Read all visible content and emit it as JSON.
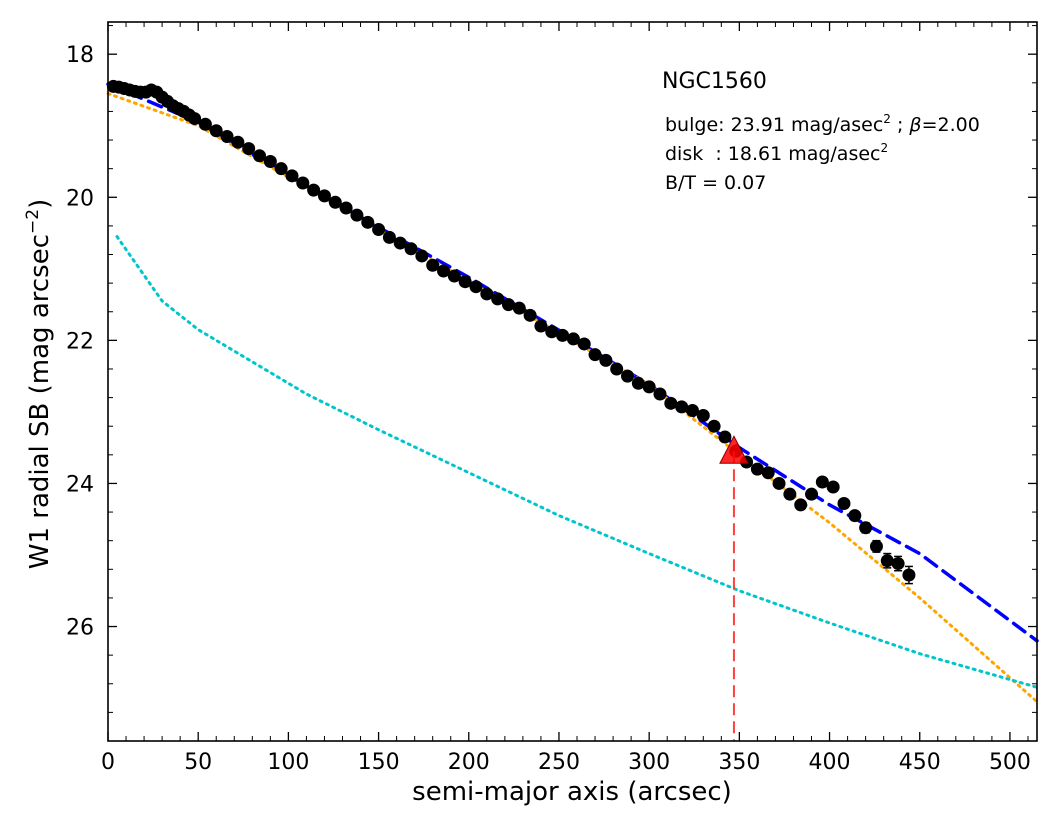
{
  "chart_data": {
    "type": "scatter",
    "title": "",
    "xlabel": "semi-major axis (arcsec)",
    "ylabel": "W1 radial SB (mag arcsec",
    "ylabel_sup": "−2",
    "ylabel_close": ")",
    "xlim": [
      0,
      515
    ],
    "ylim": [
      27.6,
      17.55
    ],
    "y_inverted": true,
    "xticks": [
      0,
      50,
      100,
      150,
      200,
      250,
      300,
      350,
      400,
      450,
      500
    ],
    "xtick_labels": [
      "0",
      "50",
      "100",
      "150",
      "200",
      "250",
      "300",
      "350",
      "400",
      "450",
      "500"
    ],
    "yticks": [
      18,
      20,
      22,
      24,
      26
    ],
    "ytick_labels": [
      "18",
      "20",
      "22",
      "24",
      "26"
    ],
    "grid": false,
    "annotations": {
      "galaxy": "NGC1560",
      "bulge_prefix": "bulge: 23.91 mag/asec",
      "bulge_sup": "2",
      "bulge_beta_sep": " ; ",
      "bulge_beta_symbol": "β",
      "bulge_beta_value": "=2.00",
      "disk_prefix": "disk  : 18.61 mag/asec",
      "disk_sup": "2",
      "bt": "B/T = 0.07"
    },
    "colors": {
      "data_points": "#000000",
      "total_fit": "#0000ff",
      "disk_fit": "#ffa500",
      "bulge_fit": "#00c5cd",
      "marker": "#ff0000",
      "marker_line": "#ff4040"
    },
    "series": [
      {
        "kind": "points",
        "values": [
          [
            3,
            18.45
          ],
          [
            6,
            18.46
          ],
          [
            9,
            18.48
          ],
          [
            12,
            18.5
          ],
          [
            15,
            18.52
          ],
          [
            18,
            18.53
          ],
          [
            21,
            18.53
          ],
          [
            24,
            18.5
          ],
          [
            27,
            18.53
          ],
          [
            30,
            18.6
          ],
          [
            33,
            18.66
          ],
          [
            36,
            18.72
          ],
          [
            39,
            18.76
          ],
          [
            42,
            18.8
          ],
          [
            45,
            18.85
          ],
          [
            48,
            18.9
          ],
          [
            54,
            18.98
          ],
          [
            60,
            19.07
          ],
          [
            66,
            19.15
          ],
          [
            72,
            19.23
          ],
          [
            78,
            19.32
          ],
          [
            84,
            19.42
          ],
          [
            90,
            19.5
          ],
          [
            96,
            19.6
          ],
          [
            102,
            19.7
          ],
          [
            108,
            19.8
          ],
          [
            114,
            19.9
          ],
          [
            120,
            19.98
          ],
          [
            126,
            20.07
          ],
          [
            132,
            20.15
          ],
          [
            138,
            20.25
          ],
          [
            144,
            20.35
          ],
          [
            150,
            20.45
          ],
          [
            156,
            20.56
          ],
          [
            162,
            20.64
          ],
          [
            168,
            20.72
          ],
          [
            174,
            20.82
          ],
          [
            180,
            20.95
          ],
          [
            186,
            21.03
          ],
          [
            192,
            21.1
          ],
          [
            198,
            21.18
          ],
          [
            204,
            21.25
          ],
          [
            210,
            21.35
          ],
          [
            216,
            21.42
          ],
          [
            222,
            21.5
          ],
          [
            228,
            21.55
          ],
          [
            234,
            21.65
          ],
          [
            240,
            21.8
          ],
          [
            246,
            21.88
          ],
          [
            252,
            21.93
          ],
          [
            258,
            21.98
          ],
          [
            264,
            22.05
          ],
          [
            270,
            22.2
          ],
          [
            276,
            22.28
          ],
          [
            282,
            22.4
          ],
          [
            288,
            22.5
          ],
          [
            294,
            22.6
          ],
          [
            300,
            22.65
          ],
          [
            306,
            22.75
          ],
          [
            312,
            22.88
          ],
          [
            318,
            22.93
          ],
          [
            324,
            22.98
          ],
          [
            330,
            23.05
          ],
          [
            336,
            23.2
          ],
          [
            342,
            23.35
          ],
          [
            348,
            23.55
          ],
          [
            354,
            23.7
          ],
          [
            360,
            23.8
          ],
          [
            366,
            23.85
          ],
          [
            372,
            24.0
          ],
          [
            378,
            24.15
          ],
          [
            384,
            24.3
          ],
          [
            390,
            24.15
          ],
          [
            396,
            23.98
          ],
          [
            402,
            24.05
          ],
          [
            408,
            24.28
          ],
          [
            414,
            24.45
          ],
          [
            420,
            24.62
          ],
          [
            426,
            24.88
          ],
          [
            432,
            25.08
          ],
          [
            438,
            25.12
          ],
          [
            444,
            25.28
          ]
        ],
        "error_bars": [
          [
            426,
            0.08
          ],
          [
            432,
            0.1
          ],
          [
            438,
            0.1
          ],
          [
            444,
            0.12
          ],
          [
            420,
            0.07
          ],
          [
            414,
            0.06
          ]
        ]
      },
      {
        "kind": "total-fit",
        "style": "dashed",
        "values": [
          [
            0,
            18.42
          ],
          [
            50,
            18.95
          ],
          [
            100,
            19.7
          ],
          [
            150,
            20.42
          ],
          [
            200,
            21.12
          ],
          [
            250,
            21.86
          ],
          [
            300,
            22.62
          ],
          [
            350,
            23.5
          ],
          [
            400,
            24.3
          ],
          [
            450,
            24.98
          ],
          [
            515,
            26.2
          ]
        ]
      },
      {
        "kind": "disk-fit",
        "style": "dotted",
        "values": [
          [
            0,
            18.55
          ],
          [
            50,
            19.0
          ],
          [
            100,
            19.72
          ],
          [
            150,
            20.45
          ],
          [
            200,
            21.17
          ],
          [
            250,
            21.9
          ],
          [
            300,
            22.62
          ],
          [
            350,
            23.6
          ],
          [
            400,
            24.55
          ],
          [
            450,
            25.6
          ],
          [
            515,
            27.05
          ]
        ]
      },
      {
        "kind": "bulge-fit",
        "style": "dotted",
        "values": [
          [
            5,
            20.55
          ],
          [
            30,
            21.45
          ],
          [
            50,
            21.85
          ],
          [
            80,
            22.3
          ],
          [
            110,
            22.75
          ],
          [
            150,
            23.25
          ],
          [
            200,
            23.85
          ],
          [
            250,
            24.45
          ],
          [
            300,
            24.98
          ],
          [
            350,
            25.5
          ],
          [
            400,
            25.95
          ],
          [
            450,
            26.38
          ],
          [
            515,
            26.85
          ]
        ]
      }
    ],
    "marker": {
      "shape": "triangle",
      "x": 347,
      "y": 23.55
    }
  }
}
